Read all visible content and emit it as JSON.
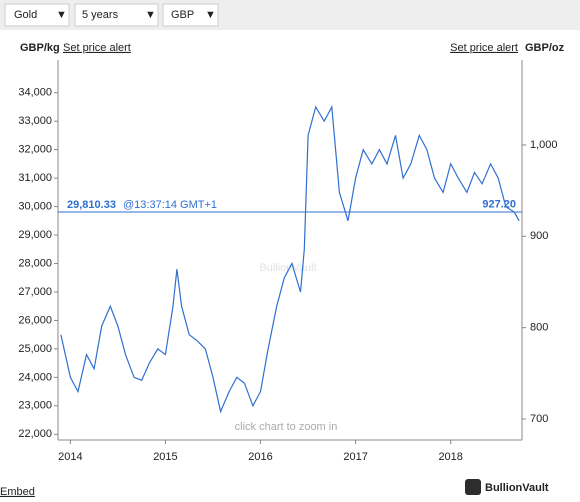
{
  "controls": {
    "metal": "Gold",
    "period": "5 years",
    "currency": "GBP"
  },
  "links": {
    "alert_left": "Set price alert",
    "alert_right": "Set price alert",
    "embed": "Embed",
    "brand": "BullionVault"
  },
  "chart_data": {
    "type": "line",
    "left_unit": "GBP/kg",
    "right_unit": "GBP/oz",
    "watermark": "BullionVault",
    "hint": "click chart to zoom in",
    "current": {
      "value": 29810.33,
      "label": "29,810.33",
      "time": "@13:37:14 GMT+1",
      "oz_value": 927.2,
      "oz_label": "927.20"
    },
    "x": [
      2013.9,
      2014.0,
      2014.08,
      2014.17,
      2014.25,
      2014.33,
      2014.42,
      2014.5,
      2014.58,
      2014.67,
      2014.75,
      2014.83,
      2014.92,
      2015.0,
      2015.08,
      2015.12,
      2015.17,
      2015.25,
      2015.33,
      2015.42,
      2015.5,
      2015.58,
      2015.67,
      2015.75,
      2015.83,
      2015.92,
      2016.0,
      2016.08,
      2016.17,
      2016.25,
      2016.33,
      2016.42,
      2016.46,
      2016.5,
      2016.58,
      2016.67,
      2016.75,
      2016.83,
      2016.92,
      2017.0,
      2017.08,
      2017.17,
      2017.25,
      2017.33,
      2017.42,
      2017.5,
      2017.58,
      2017.67,
      2017.75,
      2017.83,
      2017.92,
      2018.0,
      2018.08,
      2018.17,
      2018.25,
      2018.33,
      2018.42,
      2018.5,
      2018.58,
      2018.67,
      2018.72
    ],
    "series": [
      {
        "color": "#2f6fd0",
        "values": [
          25500,
          24000,
          23500,
          24800,
          24300,
          25800,
          26500,
          25800,
          24800,
          24000,
          23900,
          24500,
          25000,
          24800,
          26500,
          27800,
          26500,
          25500,
          25300,
          25000,
          24000,
          22800,
          23500,
          24000,
          23800,
          23000,
          23500,
          25000,
          26500,
          27500,
          28000,
          27000,
          28500,
          32500,
          33500,
          33000,
          33500,
          30500,
          29500,
          31000,
          32000,
          31500,
          32000,
          31500,
          32500,
          31000,
          31500,
          32500,
          32000,
          31000,
          30500,
          31500,
          31000,
          30500,
          31200,
          30800,
          31500,
          31000,
          30000,
          29800,
          29500
        ]
      }
    ],
    "xlim": [
      2013.87,
      2018.75
    ],
    "xticks": [
      2014,
      2015,
      2016,
      2017,
      2018
    ],
    "ylim": [
      21800,
      35150
    ],
    "yticks": [
      {
        "value": 22000,
        "label": "22,000"
      },
      {
        "value": 23000,
        "label": "23,000"
      },
      {
        "value": 24000,
        "label": "24,000"
      },
      {
        "value": 25000,
        "label": "25,000"
      },
      {
        "value": 26000,
        "label": "26,000"
      },
      {
        "value": 27000,
        "label": "27,000"
      },
      {
        "value": 28000,
        "label": "28,000"
      },
      {
        "value": 29000,
        "label": "29,000"
      },
      {
        "value": 30000,
        "label": "30,000"
      },
      {
        "value": 31000,
        "label": "31,000"
      },
      {
        "value": 32000,
        "label": "32,000"
      },
      {
        "value": 33000,
        "label": "33,000"
      },
      {
        "value": 34000,
        "label": "34,000"
      }
    ],
    "y2lim": [
      677,
      1093
    ],
    "y2ticks": [
      {
        "value": 1000,
        "label": "1,000"
      },
      900,
      800,
      700
    ]
  }
}
